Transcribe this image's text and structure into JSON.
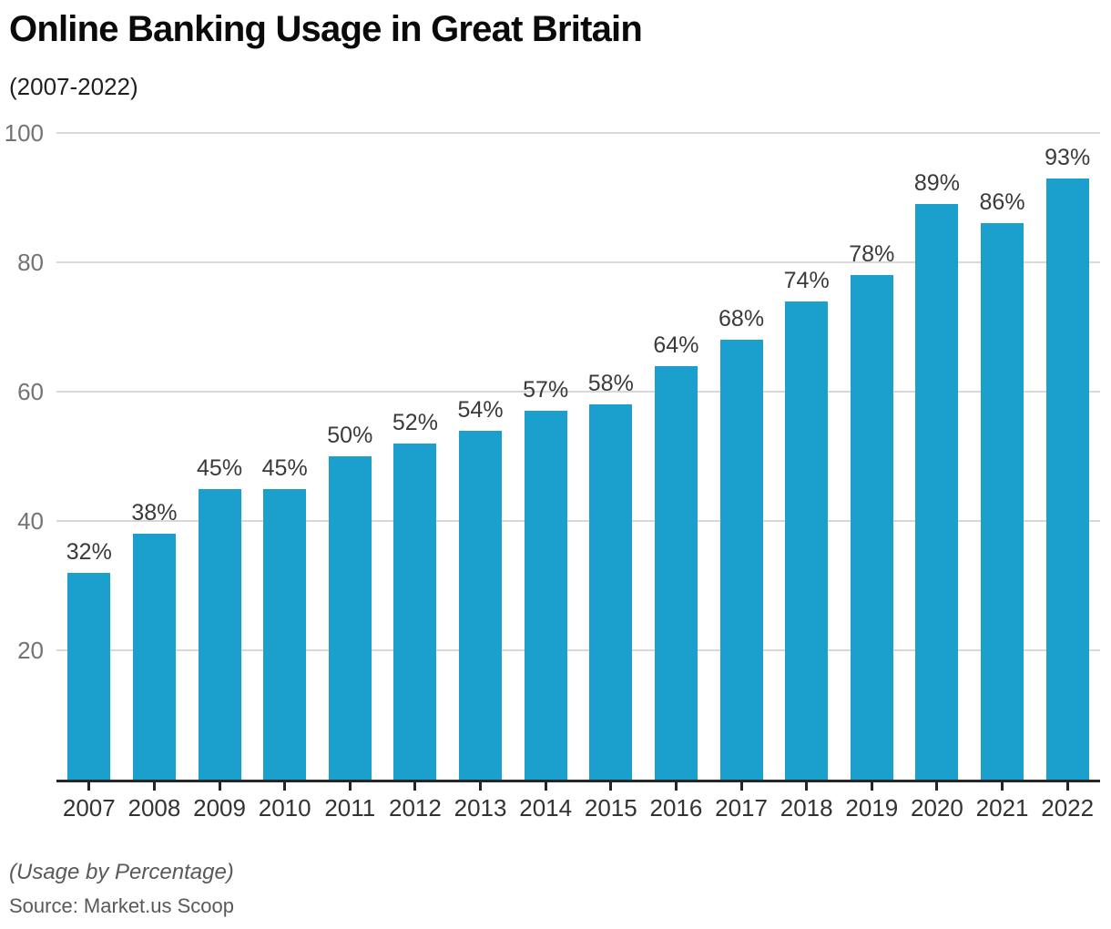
{
  "title": "Online Banking Usage in Great Britain",
  "subtitle": "(2007-2022)",
  "footer": {
    "caption": "(Usage by Percentage)",
    "source": "Source: Market.us Scoop"
  },
  "colors": {
    "bar": "#1B9FCD",
    "gridline": "#D8D8D8",
    "axis": "#262626",
    "value_label": "#3A3A3A",
    "ytick_label": "#737373",
    "xtick_label": "#333333",
    "footer_text": "#595959",
    "background": "#FFFFFF"
  },
  "chart_data": {
    "type": "bar",
    "title": "Online Banking Usage in Great Britain",
    "subtitle": "(2007-2022)",
    "categories": [
      "2007",
      "2008",
      "2009",
      "2010",
      "2011",
      "2012",
      "2013",
      "2014",
      "2015",
      "2016",
      "2017",
      "2018",
      "2019",
      "2020",
      "2021",
      "2022"
    ],
    "values": [
      32,
      38,
      45,
      45,
      50,
      52,
      54,
      57,
      58,
      64,
      68,
      74,
      78,
      89,
      86,
      93
    ],
    "value_labels": [
      "32%",
      "38%",
      "45%",
      "45%",
      "50%",
      "52%",
      "54%",
      "57%",
      "58%",
      "64%",
      "68%",
      "74%",
      "78%",
      "89%",
      "86%",
      "93%"
    ],
    "xlabel": "",
    "ylabel": "",
    "ylim": [
      0,
      100
    ],
    "yticks": [
      20,
      40,
      60,
      80,
      100
    ],
    "ytick_labels": [
      "20",
      "40",
      "60",
      "80",
      "100"
    ],
    "grid": true,
    "legend": false,
    "bar_color": "#1B9FCD"
  }
}
